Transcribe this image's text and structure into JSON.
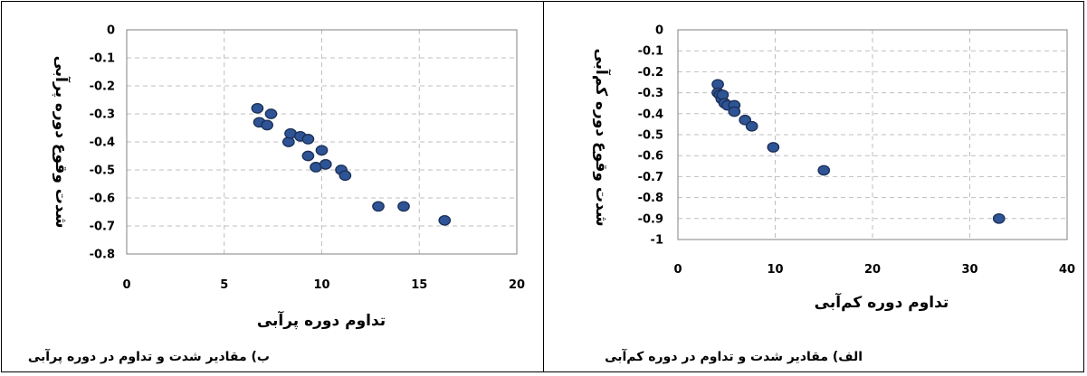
{
  "chart_data": [
    {
      "type": "scatter",
      "xlabel": "تداوم دوره پرآبی",
      "ylabel": "شدت وقوع دوره پرآبی",
      "caption": "ب) مقادیر شدت و تداوم در دوره پرآبی",
      "xlim": [
        0,
        20
      ],
      "ylim": [
        -0.8,
        0
      ],
      "xticks": [
        0,
        5,
        10,
        15,
        20
      ],
      "xtick_labels": [
        "0",
        "5",
        "10",
        "15",
        "20"
      ],
      "yticks": [
        0,
        -0.1,
        -0.2,
        -0.3,
        -0.4,
        -0.5,
        -0.6,
        -0.7,
        -0.8
      ],
      "ytick_labels": [
        "0",
        "-0.1",
        "-0.2",
        "-0.3",
        "-0.4",
        "-0.5",
        "-0.6",
        "-0.7",
        "-0.8"
      ],
      "grid": true,
      "points": [
        {
          "x": 6.7,
          "y": -0.28
        },
        {
          "x": 6.8,
          "y": -0.33
        },
        {
          "x": 7.2,
          "y": -0.34
        },
        {
          "x": 7.4,
          "y": -0.3
        },
        {
          "x": 8.3,
          "y": -0.4
        },
        {
          "x": 8.4,
          "y": -0.37
        },
        {
          "x": 8.9,
          "y": -0.38
        },
        {
          "x": 9.3,
          "y": -0.45
        },
        {
          "x": 9.3,
          "y": -0.39
        },
        {
          "x": 9.7,
          "y": -0.49
        },
        {
          "x": 10.0,
          "y": -0.43
        },
        {
          "x": 10.2,
          "y": -0.48
        },
        {
          "x": 11.0,
          "y": -0.5
        },
        {
          "x": 11.2,
          "y": -0.52
        },
        {
          "x": 12.9,
          "y": -0.63
        },
        {
          "x": 14.2,
          "y": -0.63
        },
        {
          "x": 16.3,
          "y": -0.68
        }
      ]
    },
    {
      "type": "scatter",
      "xlabel": "تداوم دوره کم‌آبی",
      "ylabel": "شدت وقوع دوره کم‌آبی",
      "caption": "الف) مقادیر شدت و تداوم در دوره کم‌آبی",
      "xlim": [
        0,
        40
      ],
      "ylim": [
        -1,
        0
      ],
      "xticks": [
        0,
        10,
        20,
        30,
        40
      ],
      "xtick_labels": [
        "0",
        "10",
        "20",
        "30",
        "40"
      ],
      "yticks": [
        0,
        -0.1,
        -0.2,
        -0.3,
        -0.4,
        -0.5,
        -0.6,
        -0.7,
        -0.8,
        -0.9,
        -1
      ],
      "ytick_labels": [
        "0",
        "-0.1",
        "-0.2",
        "-0.3",
        "-0.4",
        "-0.5",
        "-0.6",
        "-0.7",
        "-0.8",
        "-0.9",
        "-1"
      ],
      "grid": true,
      "points": [
        {
          "x": 4.1,
          "y": -0.26
        },
        {
          "x": 4.1,
          "y": -0.3
        },
        {
          "x": 4.3,
          "y": -0.31
        },
        {
          "x": 4.5,
          "y": -0.33
        },
        {
          "x": 4.6,
          "y": -0.31
        },
        {
          "x": 4.8,
          "y": -0.35
        },
        {
          "x": 5.1,
          "y": -0.36
        },
        {
          "x": 5.8,
          "y": -0.36
        },
        {
          "x": 5.8,
          "y": -0.39
        },
        {
          "x": 6.9,
          "y": -0.43
        },
        {
          "x": 7.6,
          "y": -0.46
        },
        {
          "x": 9.8,
          "y": -0.56
        },
        {
          "x": 15.0,
          "y": -0.67
        },
        {
          "x": 33.0,
          "y": -0.9
        }
      ]
    }
  ],
  "colors": {
    "marker_fill": "#2e5496",
    "marker_stroke": "#1b2f57",
    "grid": "#bfbfbf",
    "border": "#000000"
  }
}
